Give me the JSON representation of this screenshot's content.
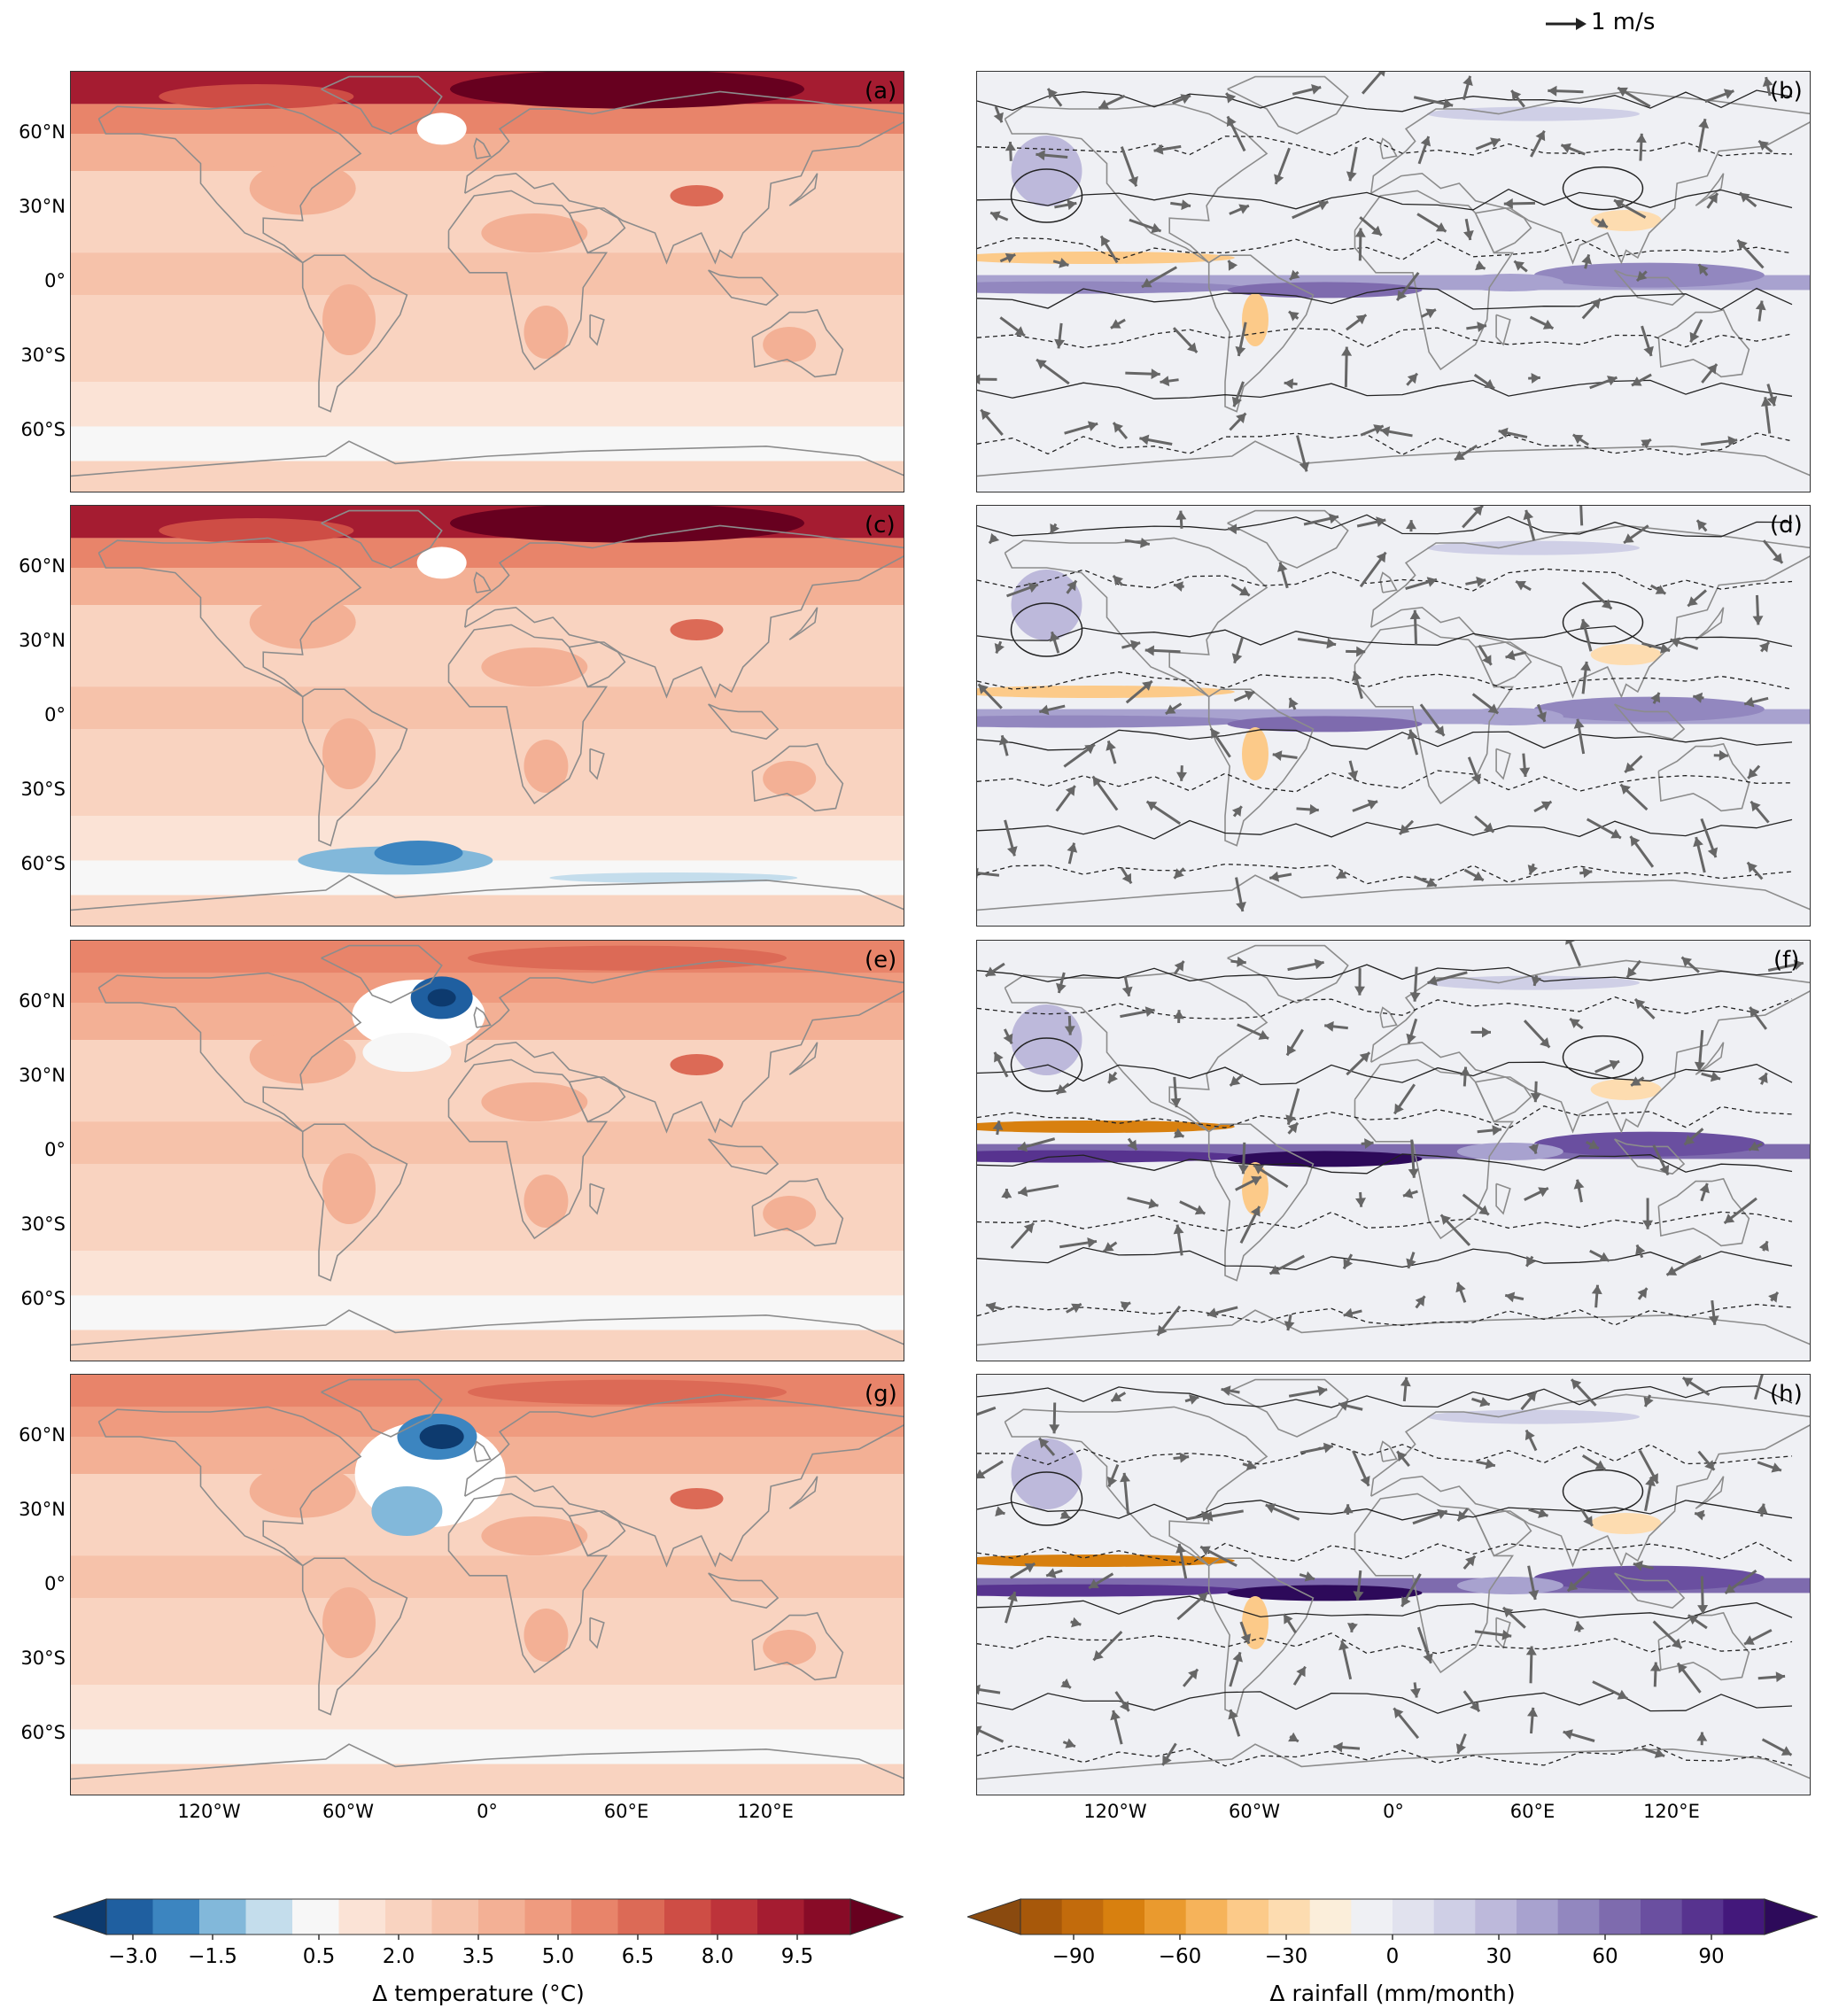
{
  "panels": [
    {
      "id": "a",
      "label": "(a)",
      "kind": "temperature"
    },
    {
      "id": "b",
      "label": "(b)",
      "kind": "rainfall"
    },
    {
      "id": "c",
      "label": "(c)",
      "kind": "temperature"
    },
    {
      "id": "d",
      "label": "(d)",
      "kind": "rainfall"
    },
    {
      "id": "e",
      "label": "(e)",
      "kind": "temperature"
    },
    {
      "id": "f",
      "label": "(f)",
      "kind": "rainfall"
    },
    {
      "id": "g",
      "label": "(g)",
      "kind": "temperature"
    },
    {
      "id": "h",
      "label": "(h)",
      "kind": "rainfall"
    }
  ],
  "lat_labels": [
    "60°N",
    "30°N",
    "0°",
    "30°S",
    "60°S"
  ],
  "lat_values": [
    60,
    30,
    0,
    -30,
    -60
  ],
  "lon_labels": [
    "120°W",
    "60°W",
    "0°",
    "60°E",
    "120°E"
  ],
  "lon_values": [
    -120,
    -60,
    0,
    60,
    120
  ],
  "wind_scale": {
    "label": "1 m/s",
    "value": 1
  },
  "colorbars": {
    "temperature": {
      "title": "Δ temperature (°C)",
      "tick_labels": [
        "−3.0",
        "−1.5",
        "0.5",
        "2.0",
        "3.5",
        "5.0",
        "6.5",
        "8.0",
        "9.5"
      ],
      "tick_values": [
        -3.0,
        -1.5,
        0.5,
        2.0,
        3.5,
        5.0,
        6.5,
        8.0,
        9.5
      ],
      "range": [
        -3.5,
        10.5
      ],
      "colors": [
        "#0d3a6e",
        "#1f5fa0",
        "#3c85c0",
        "#82b8da",
        "#c4ddec",
        "#f7f7f7",
        "#fbe3d6",
        "#f9d3c0",
        "#f6c2aa",
        "#f3b095",
        "#ef9b7f",
        "#e8846a",
        "#dc6a56",
        "#ce4d45",
        "#bd333a",
        "#a51c31",
        "#880b27",
        "#67001f"
      ]
    },
    "rainfall": {
      "title": "Δ rainfall (mm/month)",
      "tick_labels": [
        "−90",
        "−60",
        "−30",
        "0",
        "30",
        "60",
        "90"
      ],
      "tick_values": [
        -90,
        -60,
        -30,
        0,
        30,
        60,
        90
      ],
      "range": [
        -105,
        105
      ],
      "colors": [
        "#8a4a0f",
        "#a7580a",
        "#c26b0c",
        "#d8800f",
        "#ea9a2e",
        "#f6b35a",
        "#fcca89",
        "#fddcb0",
        "#fbeeda",
        "#eff0f4",
        "#e1e2ee",
        "#cfcfe6",
        "#bdb9db",
        "#a8a2cf",
        "#9287bf",
        "#7e6bae",
        "#6a4fa0",
        "#57338f",
        "#43187b",
        "#2d0a5a"
      ]
    }
  },
  "colors": {
    "land_outline": "#8c8c8c",
    "vector": "#666666",
    "contour": "#222222",
    "frame": "#333333"
  }
}
